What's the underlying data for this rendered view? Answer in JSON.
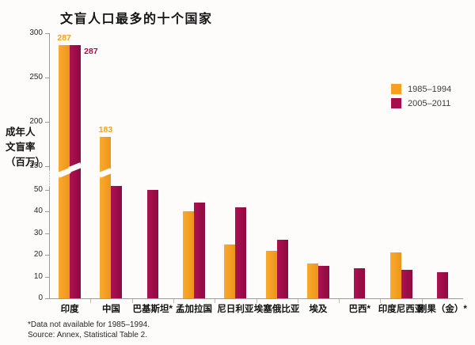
{
  "title": "文盲人口最多的十个国家",
  "y_axis_title": [
    "成年人",
    "文盲率",
    "（百万）"
  ],
  "legend": [
    {
      "label": "1985–1994",
      "color": "#F5A01E"
    },
    {
      "label": "2005–2011",
      "color": "#A50D4C"
    }
  ],
  "footnotes": [
    "*Data not available for 1985–1994.",
    "Source: Annex, Statistical Table 2."
  ],
  "colors": {
    "bar_1985_1994": "#F5A01E",
    "bar_2005_2011": "#A50D4C",
    "axis": "#9b9b9b",
    "background": "#fdfcfb"
  },
  "chart_data": {
    "type": "bar",
    "title": "文盲人口最多的十个国家",
    "ylabel": "成年人文盲率（百万）",
    "categories": [
      "印度",
      "中国",
      "巴基斯坦*",
      "孟加拉国",
      "尼日利亚",
      "埃塞俄比亚",
      "埃及",
      "巴西*",
      "印度尼西亚",
      "刚果（金）*"
    ],
    "series": [
      {
        "name": "1985–1994",
        "color": "#F5A01E",
        "values": [
          287,
          183,
          null,
          40,
          25,
          22,
          16,
          null,
          21,
          null
        ]
      },
      {
        "name": "2005–2011",
        "color": "#A50D4C",
        "values": [
          287,
          52,
          50,
          44,
          42,
          27,
          15,
          14,
          13,
          12
        ]
      }
    ],
    "value_labels": [
      {
        "category_index": 0,
        "series_index": 0,
        "text": "287",
        "placement": "above"
      },
      {
        "category_index": 0,
        "series_index": 1,
        "text": "287",
        "placement": "right"
      },
      {
        "category_index": 1,
        "series_index": 0,
        "text": "183",
        "placement": "above"
      }
    ],
    "y_ticks_upper": [
      300,
      250,
      200,
      150
    ],
    "y_ticks_lower": [
      50,
      40,
      30,
      20,
      10,
      0
    ],
    "axis_break": {
      "between": [
        50,
        150
      ]
    },
    "ylim_lower": [
      0,
      50
    ],
    "ylim_upper": [
      150,
      300
    ],
    "grid": false,
    "legend_position": "right"
  }
}
